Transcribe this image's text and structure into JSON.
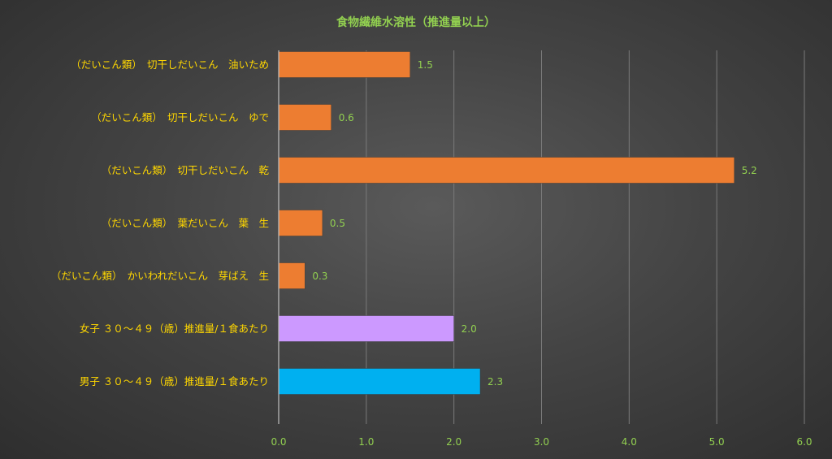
{
  "chart_data": {
    "type": "bar",
    "orientation": "horizontal",
    "title": "食物繊維水溶性（推進量以上）",
    "categories": [
      "（だいこん類）　切干しだいこん　油いため",
      "（だいこん類）　切干しだいこん　ゆで",
      "（だいこん類）　切干しだいこん　乾",
      "（だいこん類）　葉だいこん　葉　生",
      "（だいこん類）　かいわれだいこん　芽ばえ　生",
      "女子 ３０～４９（歳）推進量/１食あたり",
      "男子 ３０～４９（歳）推進量/１食あたり"
    ],
    "values": [
      1.5,
      0.6,
      5.2,
      0.5,
      0.3,
      2.0,
      2.3
    ],
    "value_labels": [
      "1.5",
      "0.6",
      "5.2",
      "0.5",
      "0.3",
      "2.0",
      "2.3"
    ],
    "bar_colors": [
      "#ED7D31",
      "#ED7D31",
      "#ED7D31",
      "#ED7D31",
      "#ED7D31",
      "#CC99FF",
      "#00B0F0"
    ],
    "x_ticks": [
      "0.0",
      "1.0",
      "2.0",
      "3.0",
      "4.0",
      "5.0",
      "6.0"
    ],
    "xlim": [
      0,
      6
    ],
    "grid": true,
    "legend": "none",
    "colors": {
      "title": "#92D050",
      "category_label": "#FFD700",
      "tick_label": "#92D050",
      "data_label": "#92D050",
      "gridline": "#7A7A7A",
      "axis": "#BFBFBF"
    }
  }
}
